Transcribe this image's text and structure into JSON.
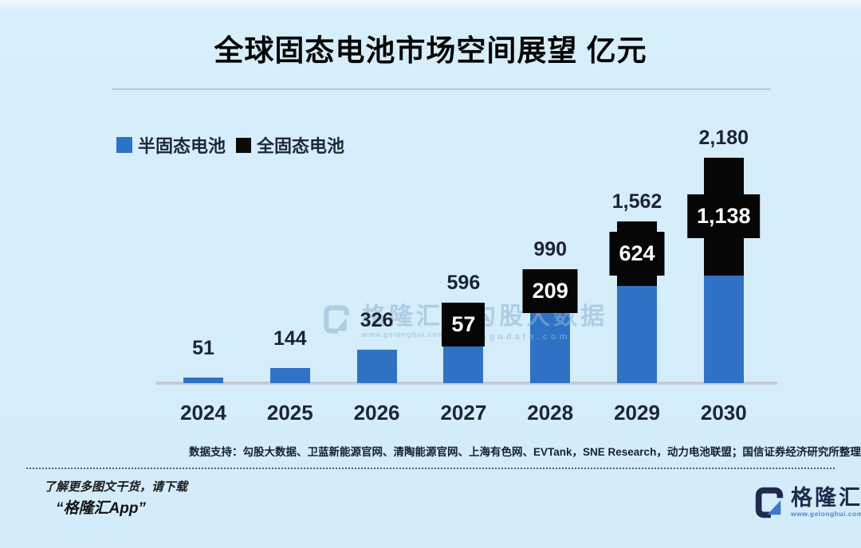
{
  "title": "全球固态电池市场空间展望 亿元",
  "legend": {
    "items": [
      {
        "label": "半固态电池",
        "color": "#2f72c5"
      },
      {
        "label": "全固态电池",
        "color": "#0b0b0b"
      }
    ]
  },
  "chart_data": {
    "type": "bar",
    "stacked": true,
    "title": "全球固态电池市场空间展望",
    "unit": "亿元",
    "categories": [
      "2024",
      "2025",
      "2026",
      "2027",
      "2028",
      "2029",
      "2030"
    ],
    "series": [
      {
        "name": "半固态电池",
        "color": "#2f72c5",
        "values": [
          51,
          144,
          326,
          539,
          781,
          938,
          1042
        ]
      },
      {
        "name": "全固态电池",
        "color": "#070707",
        "values": [
          0,
          0,
          0,
          57,
          209,
          624,
          1138
        ]
      }
    ],
    "totals": [
      51,
      144,
      326,
      596,
      990,
      1562,
      2180
    ],
    "total_labels": [
      "51",
      "144",
      "326",
      "596",
      "990",
      "1,562",
      "2,180"
    ],
    "solid_segment_labels": [
      "",
      "",
      "",
      "57",
      "209",
      "624",
      "1,138"
    ],
    "ylim": [
      0,
      2300
    ],
    "grid": false,
    "legend_position": "top-left",
    "xlabel": "",
    "ylabel": ""
  },
  "watermark": {
    "brand": "格隆汇",
    "brand_url": "www.gelonghui.com",
    "partner": "勾股大数据",
    "partner_url": "gogudata.com"
  },
  "footnote": "数据支持：勾股大数据、卫蓝新能源官网、清陶能源官网、上海有色网、EVTank，SNE Research，动力电池联盟；国信证券经济研究所整理与测算",
  "promo": {
    "line1": "了解更多图文干货，请下载",
    "line2": "“格隆汇App”"
  },
  "brand": {
    "name": "格隆汇",
    "url": "www.gelonghui.com"
  }
}
